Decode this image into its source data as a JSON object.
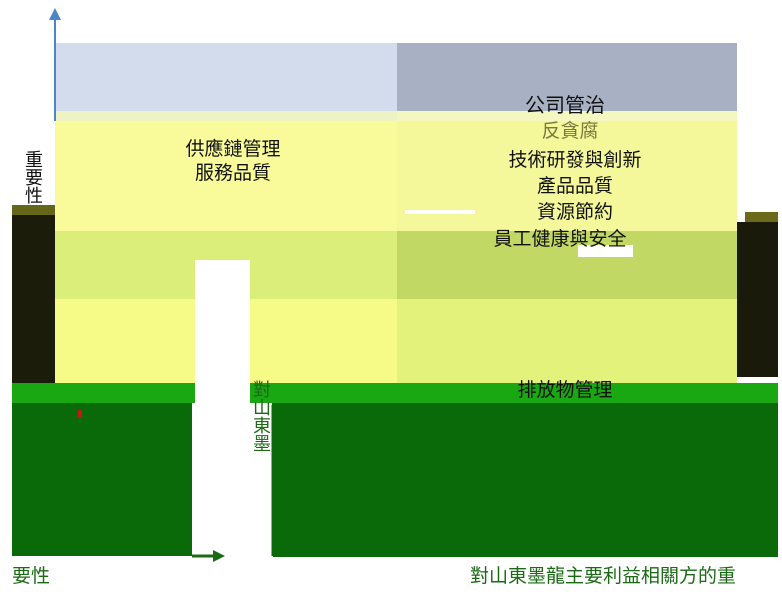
{
  "title": "",
  "axes": {
    "x_label": "對山東墨龍主要利益相關方的重",
    "y_label_top": "重要性",
    "y_label_bottom": "要性",
    "x_center_vertical_label": "對山東墨"
  },
  "topics": {
    "supply_chain": "供應鏈管理",
    "service_quality": "服務品質",
    "corporate_governance": "公司管治",
    "anti_corruption": "反貪腐",
    "rd_innovation": "技術研發與創新",
    "product_quality": "產品品質",
    "resource_saving": "資源節約",
    "employee_health_safety": "員工健康與安全",
    "emissions_management": "排放物管理"
  },
  "colors": {
    "top_left": "#d3dcec",
    "top_right": "#a8b1c4",
    "yellow_light": "#f9fb9a",
    "yellow_mid": "#dbee7a",
    "olive": "#c2d865",
    "green_bright": "#19a712",
    "green_dark": "#0a6a0a",
    "axis_blue": "#4a86c8",
    "axis_green": "#1a6b14"
  }
}
